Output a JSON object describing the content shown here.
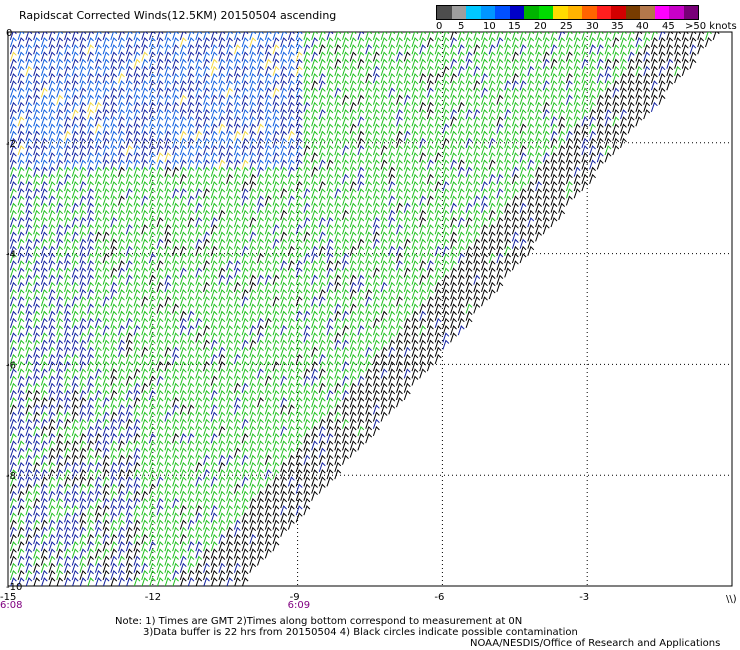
{
  "title": "Rapidscat Corrected Winds(12.5KM) 20150504 ascending",
  "legend": {
    "colors": [
      "#4d4d4d",
      "#9e9e9e",
      "#00c8ff",
      "#0096ff",
      "#0050ff",
      "#0000c8",
      "#00b400",
      "#00dc00",
      "#ffdc00",
      "#ffb400",
      "#ff6400",
      "#ff1e1e",
      "#d20000",
      "#783c00",
      "#b4784b",
      "#ff00ff",
      "#c800c8",
      "#780078"
    ],
    "labels": [
      "0",
      "5",
      "10",
      "15",
      "20",
      "25",
      "30",
      "35",
      "40",
      "45",
      ">50 knots"
    ]
  },
  "chart_data": {
    "type": "scatter",
    "xlim": [
      -15,
      0
    ],
    "ylim": [
      -10,
      0
    ],
    "xticks": [
      "-15",
      "-12",
      "-9",
      "-6",
      "-3"
    ],
    "yticks": [
      "0",
      "-2",
      "-4",
      "-6",
      "-8",
      "-10"
    ],
    "grid": true,
    "time_labels": [
      {
        "x": -15,
        "label": "6:08"
      },
      {
        "x": -9,
        "label": "6:09"
      }
    ],
    "swath_edge": [
      [
        -10.2,
        -10
      ],
      [
        -0.3,
        0
      ]
    ],
    "wind_speed_bins_knots": [
      {
        "speed": "0-5",
        "color": "#f0d840"
      },
      {
        "speed": "10-15",
        "color": "#1060e0"
      },
      {
        "speed": "15-20",
        "color": "#1020a0"
      },
      {
        "speed": "20-25",
        "color": "#20c020"
      },
      {
        "speed": "25-30",
        "color": "#000000"
      }
    ]
  },
  "notes": {
    "line1": "Note: 1) Times are GMT 2)Times along bottom correspond to measurement at 0N",
    "line2": "3)Data buffer is 22 hrs from 20150504 4) Black circles indicate possible contamination"
  },
  "footer": "NOAA/NESDIS/Office of Research and Applications",
  "corner_glyph": "\\\\)"
}
